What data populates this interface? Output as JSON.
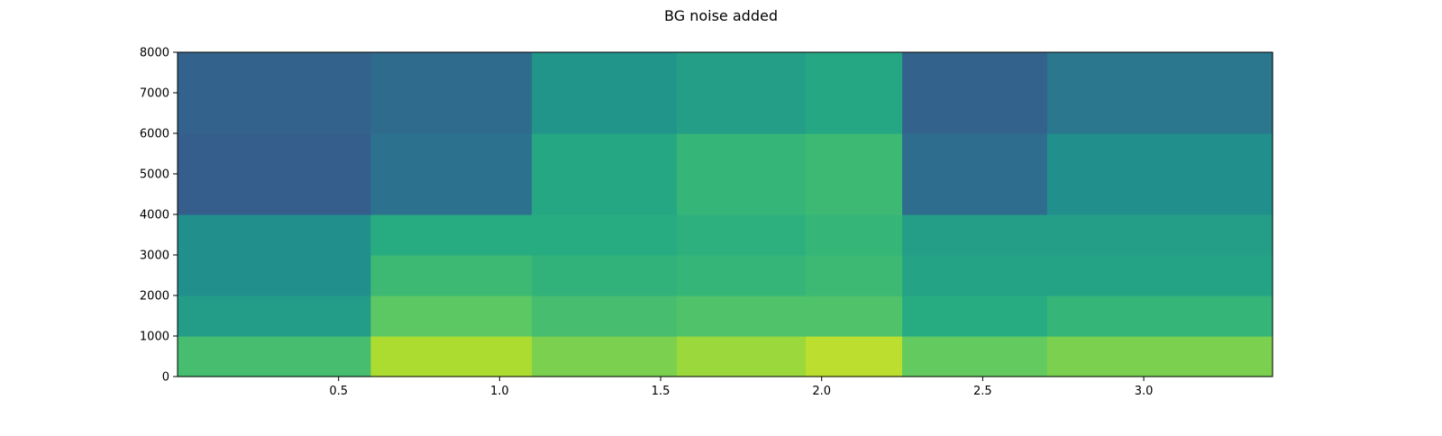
{
  "figure": {
    "title": "BG noise added"
  },
  "chart_data": {
    "type": "heatmap",
    "title": "BG noise added",
    "xlabel": "",
    "ylabel": "",
    "xlim": [
      0.0,
      3.4
    ],
    "ylim": [
      0,
      8000
    ],
    "xticks": [
      0.5,
      1.0,
      1.5,
      2.0,
      2.5,
      3.0
    ],
    "xtick_labels": [
      "0.5",
      "1.0",
      "1.5",
      "2.0",
      "2.5",
      "3.0"
    ],
    "yticks": [
      0,
      1000,
      2000,
      3000,
      4000,
      5000,
      6000,
      7000,
      8000
    ],
    "ytick_labels": [
      "0",
      "1000",
      "2000",
      "3000",
      "4000",
      "5000",
      "6000",
      "7000",
      "8000"
    ],
    "colormap": "viridis",
    "grid": false,
    "legend": "none",
    "intensity_by_segment": {
      "time_bins": [
        [
          0.0,
          0.6
        ],
        [
          0.6,
          1.1
        ],
        [
          1.1,
          1.55
        ],
        [
          1.55,
          1.95
        ],
        [
          1.95,
          2.25
        ],
        [
          2.25,
          2.7
        ],
        [
          2.7,
          3.4
        ]
      ],
      "freq_bins": [
        [
          0,
          1000
        ],
        [
          1000,
          2000
        ],
        [
          2000,
          3000
        ],
        [
          3000,
          4000
        ],
        [
          4000,
          6000
        ],
        [
          6000,
          8000
        ]
      ],
      "values": [
        [
          0.7,
          0.55,
          0.5,
          0.5,
          0.3,
          0.32
        ],
        [
          0.88,
          0.75,
          0.68,
          0.62,
          0.38,
          0.35
        ],
        [
          0.8,
          0.7,
          0.65,
          0.62,
          0.6,
          0.52
        ],
        [
          0.85,
          0.72,
          0.66,
          0.64,
          0.66,
          0.56
        ],
        [
          0.9,
          0.72,
          0.68,
          0.66,
          0.68,
          0.6
        ],
        [
          0.76,
          0.62,
          0.58,
          0.56,
          0.36,
          0.32
        ],
        [
          0.8,
          0.66,
          0.58,
          0.56,
          0.5,
          0.4
        ]
      ]
    }
  }
}
